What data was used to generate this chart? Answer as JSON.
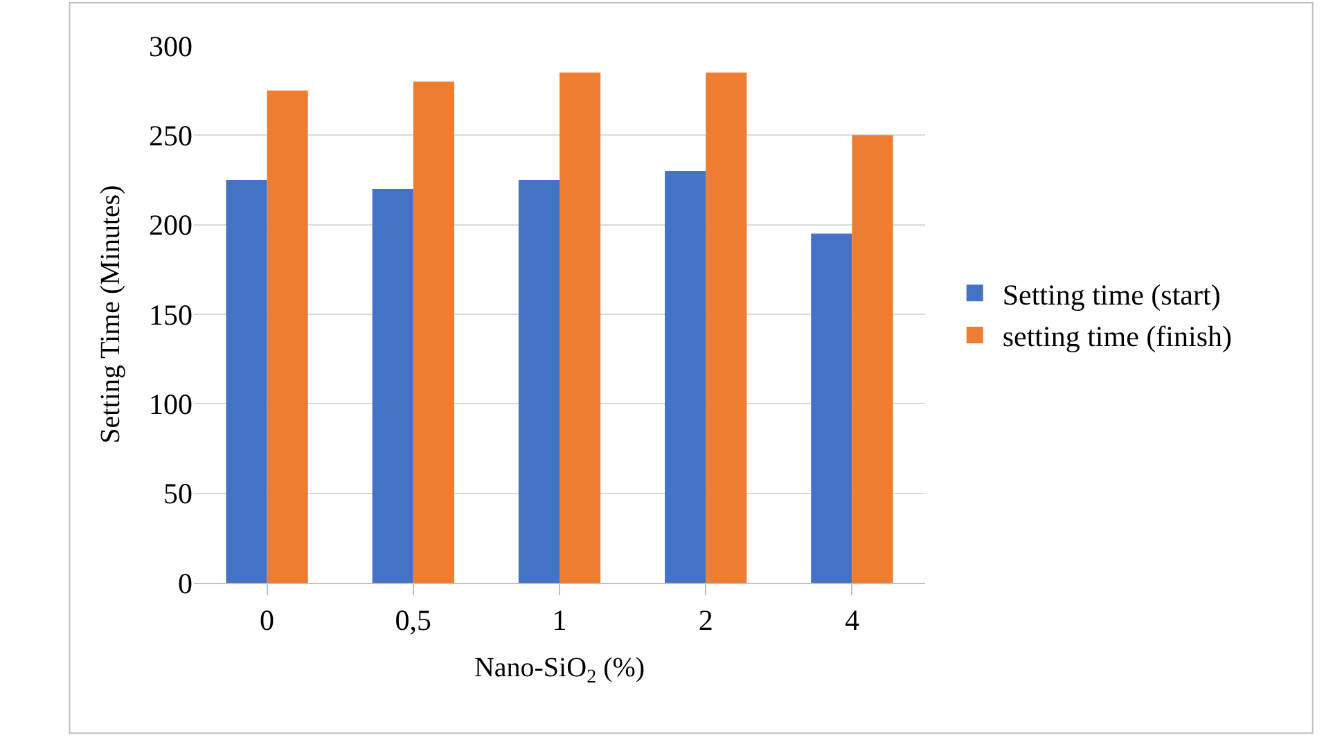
{
  "chart_data": {
    "type": "bar",
    "xlabel": "Nano-SiO$_{2}$ (%)",
    "ylabel": "Setting Time (Minutes)",
    "categories": [
      "0",
      "0,5",
      "1",
      "2",
      "4"
    ],
    "series": [
      {
        "name": "Setting time (start)",
        "color": "#4472c4",
        "values": [
          225,
          220,
          225,
          230,
          195
        ]
      },
      {
        "name": "setting time (finish)",
        "color": "#ed7d31",
        "values": [
          275,
          280,
          285,
          285,
          250
        ]
      }
    ],
    "ylim": [
      0,
      300
    ],
    "yticks": [
      0,
      50,
      100,
      150,
      200,
      250,
      300
    ],
    "grid": "y",
    "legend": "right"
  }
}
